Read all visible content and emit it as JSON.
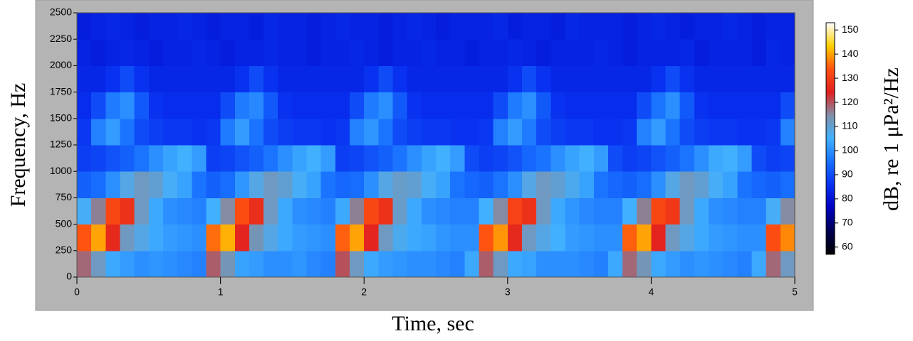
{
  "chart_data": {
    "type": "heatmap",
    "x_label": "Time, sec",
    "y_label": "Frequency, Hz",
    "xlim": [
      0,
      5
    ],
    "ylim": [
      0,
      2500
    ],
    "xticks": [
      0,
      1,
      2,
      3,
      4,
      5
    ],
    "yticks": [
      0,
      250,
      500,
      750,
      1000,
      1250,
      1500,
      1750,
      2000,
      2250,
      2500
    ],
    "xbins": [
      0,
      0.1,
      0.2,
      0.3,
      0.4,
      0.5,
      0.6,
      0.7,
      0.8,
      0.9,
      1,
      1.1,
      1.2,
      1.3,
      1.4,
      1.5,
      1.6,
      1.7,
      1.8,
      1.9,
      2,
      2.1,
      2.2,
      2.3,
      2.4,
      2.5,
      2.6,
      2.7,
      2.8,
      2.9,
      3,
      3.1,
      3.2,
      3.3,
      3.4,
      3.5,
      3.6,
      3.7,
      3.8,
      3.9,
      4,
      4.1,
      4.2,
      4.3,
      4.4,
      4.5,
      4.6,
      4.7,
      4.8,
      4.9,
      5
    ],
    "ybins": [
      0,
      250,
      500,
      750,
      1000,
      1250,
      1500,
      1750,
      2000,
      2250,
      2500
    ],
    "z": [
      [
        118,
        112,
        104,
        102,
        100,
        101,
        100,
        99,
        98,
        119,
        113,
        103,
        102,
        100,
        100,
        101,
        99,
        98,
        120,
        112,
        104,
        102,
        101,
        100,
        100,
        99,
        98,
        104,
        119,
        112,
        104,
        103,
        100,
        100,
        100,
        99,
        98,
        104,
        118,
        113,
        104,
        102,
        100,
        101,
        100,
        99,
        98,
        104,
        118,
        112
      ],
      [
        134,
        140,
        126,
        112,
        108,
        104,
        102,
        101,
        100,
        136,
        141,
        125,
        113,
        108,
        104,
        102,
        101,
        100,
        135,
        140,
        125,
        112,
        107,
        104,
        103,
        101,
        100,
        100,
        134,
        139,
        126,
        112,
        108,
        105,
        102,
        101,
        100,
        100,
        135,
        140,
        125,
        112,
        108,
        104,
        102,
        101,
        100,
        100,
        133,
        138
      ],
      [
        106,
        116,
        132,
        128,
        112,
        104,
        100,
        99,
        98,
        105,
        115,
        133,
        127,
        112,
        104,
        100,
        99,
        98,
        104,
        116,
        132,
        128,
        111,
        104,
        100,
        99,
        98,
        98,
        105,
        115,
        131,
        128,
        112,
        104,
        101,
        99,
        98,
        98,
        105,
        116,
        132,
        129,
        112,
        104,
        100,
        99,
        98,
        98,
        106,
        115
      ],
      [
        93,
        95,
        100,
        108,
        112,
        110,
        106,
        103,
        96,
        93,
        95,
        101,
        108,
        112,
        110,
        106,
        103,
        96,
        94,
        95,
        100,
        108,
        111,
        110,
        106,
        103,
        96,
        94,
        93,
        96,
        100,
        108,
        112,
        110,
        107,
        103,
        96,
        94,
        93,
        95,
        100,
        108,
        112,
        110,
        106,
        103,
        96,
        94,
        93,
        95
      ],
      [
        88,
        89,
        91,
        93,
        96,
        100,
        103,
        105,
        102,
        88,
        89,
        91,
        93,
        96,
        100,
        103,
        105,
        102,
        88,
        89,
        91,
        93,
        96,
        100,
        103,
        105,
        102,
        90,
        88,
        89,
        91,
        94,
        96,
        100,
        103,
        105,
        102,
        90,
        88,
        89,
        91,
        93,
        96,
        100,
        104,
        105,
        102,
        90,
        88,
        89
      ],
      [
        87,
        98,
        102,
        96,
        90,
        88,
        87,
        87,
        86,
        87,
        97,
        102,
        96,
        90,
        88,
        87,
        87,
        86,
        87,
        98,
        101,
        96,
        90,
        88,
        87,
        87,
        86,
        86,
        87,
        98,
        102,
        97,
        90,
        88,
        87,
        87,
        86,
        86,
        87,
        98,
        102,
        96,
        90,
        88,
        87,
        87,
        86,
        86,
        87,
        98
      ],
      [
        85,
        90,
        97,
        100,
        92,
        86,
        85,
        85,
        85,
        85,
        90,
        97,
        99,
        92,
        86,
        85,
        85,
        85,
        85,
        90,
        97,
        100,
        92,
        86,
        85,
        85,
        85,
        85,
        85,
        90,
        97,
        100,
        92,
        86,
        85,
        85,
        85,
        85,
        85,
        90,
        96,
        100,
        92,
        86,
        85,
        85,
        85,
        85,
        85,
        90
      ],
      [
        84,
        84,
        86,
        90,
        86,
        84,
        84,
        84,
        84,
        84,
        84,
        86,
        90,
        86,
        84,
        84,
        84,
        84,
        84,
        84,
        86,
        90,
        86,
        84,
        84,
        84,
        84,
        84,
        84,
        84,
        86,
        90,
        86,
        84,
        84,
        84,
        84,
        84,
        84,
        84,
        86,
        90,
        86,
        84,
        84,
        84,
        84,
        84,
        84,
        84
      ],
      [
        83,
        82,
        83,
        84,
        83,
        82,
        83,
        83,
        84,
        83,
        82,
        83,
        83,
        84,
        83,
        83,
        82,
        83,
        83,
        84,
        83,
        82,
        83,
        83,
        84,
        83,
        83,
        82,
        83,
        83,
        84,
        83,
        82,
        83,
        83,
        83,
        84,
        83,
        82,
        83,
        83,
        83,
        84,
        82,
        83,
        83,
        83,
        82,
        84,
        83
      ],
      [
        82,
        83,
        84,
        83,
        82,
        83,
        83,
        84,
        83,
        82,
        83,
        83,
        82,
        84,
        83,
        83,
        82,
        83,
        84,
        83,
        83,
        82,
        83,
        84,
        83,
        82,
        83,
        83,
        83,
        84,
        82,
        83,
        83,
        82,
        84,
        83,
        83,
        83,
        82,
        83,
        84,
        83,
        82,
        83,
        83,
        84,
        83,
        82,
        83,
        83
      ]
    ],
    "colorbar": {
      "label": "dB, re 1 μPa²/Hz",
      "lim": [
        57,
        153
      ],
      "ticks": [
        60,
        70,
        80,
        90,
        100,
        110,
        120,
        130,
        140,
        150
      ],
      "colors": [
        "#000000",
        "#000050",
        "#0000c0",
        "#0830f0",
        "#1870ff",
        "#40b0ff",
        "#8090a8",
        "#e02020",
        "#ff5010",
        "#ffd000",
        "#ffffff"
      ]
    }
  }
}
